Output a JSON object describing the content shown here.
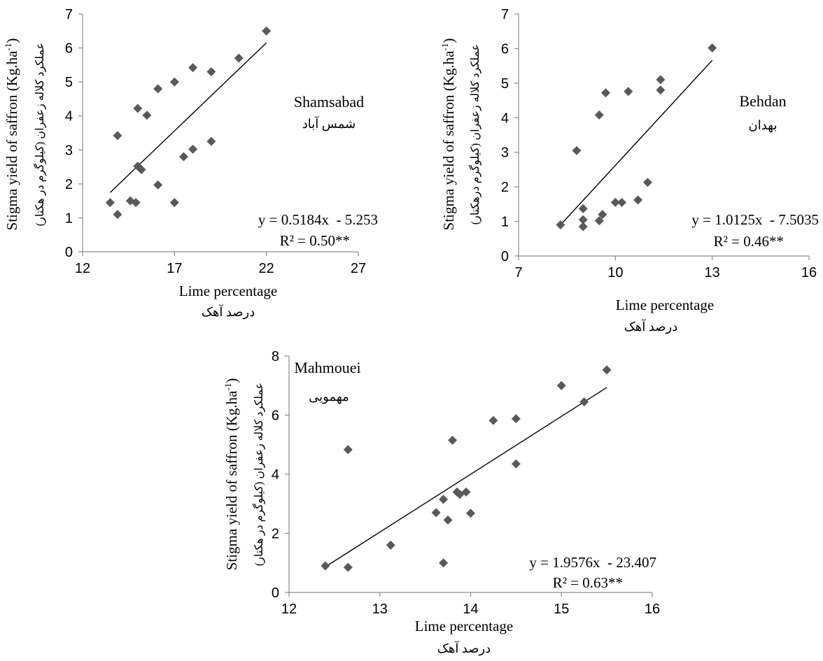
{
  "chart_data": [
    {
      "type": "scatter",
      "location_label": "Shamsabad",
      "location_label_fa": "شمس آباد",
      "xlabel": "Lime percentage",
      "xlabel_fa": "درصد آهک",
      "ylabel": "Stigma yield of saffron (Kg.ha",
      "ylabel_sup": "-1",
      "ylabel_close": ")",
      "ylabel_fa": "عملکرد کلاله زعفران (کیلوگرم در هکتار)",
      "xlim": [
        12,
        27
      ],
      "ylim": [
        0,
        7
      ],
      "xticks": [
        12,
        17,
        22,
        27
      ],
      "yticks": [
        0,
        1,
        2,
        3,
        4,
        5,
        6,
        7
      ],
      "equation": "y = 0.5184x  - 5.253",
      "r2": "R² = 0.50**",
      "trendline": {
        "slope": 0.5184,
        "intercept": -5.253,
        "x_range": [
          13.5,
          22
        ]
      },
      "marker_color": "#595959",
      "points": [
        {
          "x": 13.5,
          "y": 1.45
        },
        {
          "x": 13.9,
          "y": 1.1
        },
        {
          "x": 13.9,
          "y": 3.42
        },
        {
          "x": 14.6,
          "y": 1.5
        },
        {
          "x": 14.9,
          "y": 1.45
        },
        {
          "x": 15.0,
          "y": 2.52
        },
        {
          "x": 15.0,
          "y": 4.22
        },
        {
          "x": 15.2,
          "y": 2.42
        },
        {
          "x": 15.5,
          "y": 4.02
        },
        {
          "x": 16.1,
          "y": 1.97
        },
        {
          "x": 16.1,
          "y": 4.8
        },
        {
          "x": 17.0,
          "y": 1.45
        },
        {
          "x": 17.0,
          "y": 5.0
        },
        {
          "x": 17.5,
          "y": 2.8
        },
        {
          "x": 18.0,
          "y": 3.02
        },
        {
          "x": 18.0,
          "y": 5.42
        },
        {
          "x": 19.0,
          "y": 3.25
        },
        {
          "x": 19.0,
          "y": 5.3
        },
        {
          "x": 20.5,
          "y": 5.7
        },
        {
          "x": 22.0,
          "y": 6.5
        }
      ]
    },
    {
      "type": "scatter",
      "location_label": "Behdan",
      "location_label_fa": "بهدان",
      "xlabel": "Lime percentage",
      "xlabel_fa": "درصد آهک",
      "ylabel": "Stigma yield of saffron (Kg.ha",
      "ylabel_sup": "-1",
      "ylabel_close": ")",
      "ylabel_fa": "عملکرد کلاله زعفران (کیلوگرم درهکتار)",
      "xlim": [
        7,
        16
      ],
      "ylim": [
        0,
        7
      ],
      "xticks": [
        7,
        10,
        13,
        16
      ],
      "yticks": [
        0,
        1,
        2,
        3,
        4,
        5,
        6,
        7
      ],
      "equation": "y = 1.0125x  - 7.5035",
      "r2": "R² = 0.46**",
      "trendline": {
        "slope": 1.0125,
        "intercept": -7.5035,
        "x_range": [
          8.3,
          13
        ]
      },
      "marker_color": "#595959",
      "points": [
        {
          "x": 8.3,
          "y": 0.9
        },
        {
          "x": 8.8,
          "y": 3.05
        },
        {
          "x": 9.0,
          "y": 0.85
        },
        {
          "x": 9.0,
          "y": 1.05
        },
        {
          "x": 9.0,
          "y": 1.37
        },
        {
          "x": 9.5,
          "y": 1.02
        },
        {
          "x": 9.6,
          "y": 1.2
        },
        {
          "x": 9.5,
          "y": 4.08
        },
        {
          "x": 9.7,
          "y": 4.72
        },
        {
          "x": 10.0,
          "y": 1.55
        },
        {
          "x": 10.2,
          "y": 1.55
        },
        {
          "x": 10.4,
          "y": 4.76
        },
        {
          "x": 10.7,
          "y": 1.62
        },
        {
          "x": 11.0,
          "y": 2.13
        },
        {
          "x": 11.4,
          "y": 4.8
        },
        {
          "x": 11.4,
          "y": 5.1
        },
        {
          "x": 13.0,
          "y": 6.02
        }
      ]
    },
    {
      "type": "scatter",
      "location_label": "Mahmouei",
      "location_label_fa": "مهمویی",
      "xlabel": "Lime percentage",
      "xlabel_fa": "درصد آهک",
      "ylabel": "Stigma yield of saffron (Kg.ha",
      "ylabel_sup": "-1",
      "ylabel_close": ")",
      "ylabel_fa": "عملکرد کلاله زعفران (کیلوگرم در هکتار)",
      "xlim": [
        12,
        16
      ],
      "ylim": [
        0,
        8
      ],
      "xticks": [
        12,
        13,
        14,
        15,
        16
      ],
      "yticks": [
        0,
        2,
        4,
        6,
        8
      ],
      "equation": "y = 1.9576x  - 23.407",
      "r2": "R² = 0.63**",
      "trendline": {
        "slope": 1.9576,
        "intercept": -23.407,
        "x_range": [
          12.4,
          15.5
        ]
      },
      "marker_color": "#595959",
      "points": [
        {
          "x": 12.4,
          "y": 0.9
        },
        {
          "x": 12.65,
          "y": 0.85
        },
        {
          "x": 12.65,
          "y": 4.83
        },
        {
          "x": 13.12,
          "y": 1.6
        },
        {
          "x": 13.62,
          "y": 2.7
        },
        {
          "x": 13.7,
          "y": 1.0
        },
        {
          "x": 13.7,
          "y": 3.15
        },
        {
          "x": 13.75,
          "y": 2.45
        },
        {
          "x": 13.8,
          "y": 5.15
        },
        {
          "x": 13.85,
          "y": 3.4
        },
        {
          "x": 13.88,
          "y": 3.32
        },
        {
          "x": 13.95,
          "y": 3.4
        },
        {
          "x": 14.0,
          "y": 2.68
        },
        {
          "x": 14.25,
          "y": 5.82
        },
        {
          "x": 14.5,
          "y": 4.35
        },
        {
          "x": 14.5,
          "y": 5.88
        },
        {
          "x": 15.0,
          "y": 7.0
        },
        {
          "x": 15.25,
          "y": 6.45
        },
        {
          "x": 15.5,
          "y": 7.53
        }
      ]
    }
  ]
}
